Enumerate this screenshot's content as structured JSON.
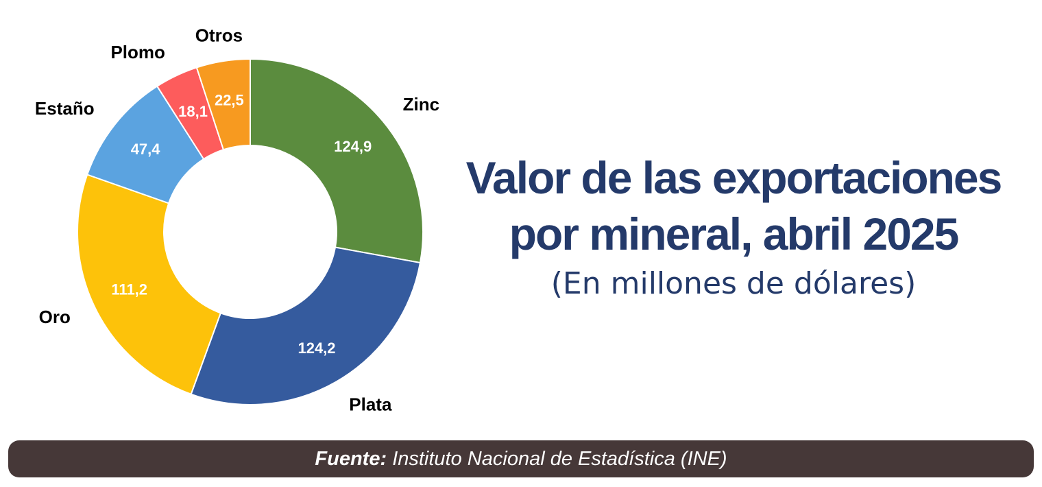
{
  "header": {
    "title_line1": "Valor de las exportaciones",
    "title_line2": "por mineral, abril 2025",
    "subtitle": "(En millones de dólares)"
  },
  "footer": {
    "source_label": "Fuente:",
    "source_text": "Instituto Nacional de Estadística (INE)"
  },
  "chart_data": {
    "type": "pie",
    "variant": "donut",
    "slices": [
      {
        "label": "Zinc",
        "value": 124.9,
        "value_text": "124,9",
        "color": "#5b8c3e"
      },
      {
        "label": "Plata",
        "value": 124.2,
        "value_text": "124,2",
        "color": "#355b9e"
      },
      {
        "label": "Oro",
        "value": 111.2,
        "value_text": "111,2",
        "color": "#fdc20a"
      },
      {
        "label": "Estaño",
        "value": 47.4,
        "value_text": "47,4",
        "color": "#5ba3e0"
      },
      {
        "label": "Plomo",
        "value": 18.1,
        "value_text": "18,1",
        "color": "#fd5c5c"
      },
      {
        "label": "Otros",
        "value": 22.5,
        "value_text": "22,5",
        "color": "#f79a20"
      }
    ],
    "value_label_colors": {
      "default": "#ffffff",
      "dark_text": "#000000"
    }
  }
}
